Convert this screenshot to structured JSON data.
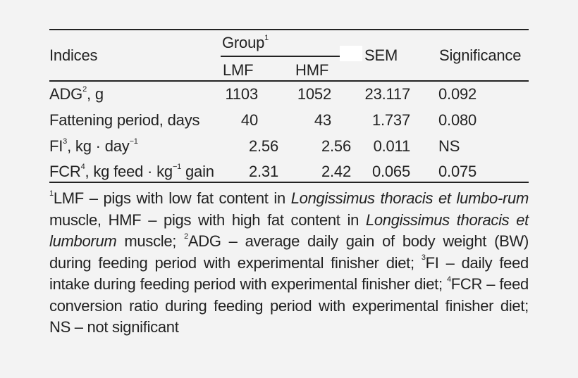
{
  "table": {
    "header": {
      "indices": "Indices",
      "group": "Group",
      "group_sup": "1",
      "lmf": "LMF",
      "hmf": "HMF",
      "sem": "SEM",
      "significance": "Significance"
    },
    "rows": [
      {
        "label": "ADG",
        "label_sup": "2",
        "label_rest": ", g",
        "lmf": "1103",
        "hmf": "1052",
        "sem": "23.117",
        "sig": "0.092"
      },
      {
        "label": "Fattening period, days",
        "label_sup": "",
        "label_rest": "",
        "lmf": "40",
        "hmf": "43",
        "sem": "1.737",
        "sig": "0.080"
      },
      {
        "label": "FI",
        "label_sup": "3",
        "label_rest": ", kg · day",
        "label_rest_sup": "−1",
        "lmf": "2.56",
        "hmf": "2.56",
        "sem": "0.011",
        "sig": "NS"
      },
      {
        "label": "FCR",
        "label_sup": "4",
        "label_rest": ", kg feed · kg",
        "label_rest_sup": "−1",
        "label_tail": " gain",
        "lmf": "2.31",
        "hmf": "2.42",
        "sem": "0.065",
        "sig": "0.075"
      }
    ]
  },
  "footnotes": {
    "n1_sup": "1",
    "n1_a": "LMF – pigs with low fat content in ",
    "n1_i1": "Longissimus thoracis et lumbo-rum",
    "n1_b": " muscle, HMF – pigs with high fat content in ",
    "n1_i2": "Longissimus thoracis et lumborum",
    "n1_c": " muscle; ",
    "n2_sup": "2",
    "n2": "ADG – average daily gain of body weight (BW) during feeding period with experimental finisher diet; ",
    "n3_sup": "3",
    "n3": "FI – daily feed intake during feeding period with experimental finisher diet; ",
    "n4_sup": "4",
    "n4": "FCR – feed conversion ratio during feeding period with experimental finisher diet; NS – not significant"
  }
}
